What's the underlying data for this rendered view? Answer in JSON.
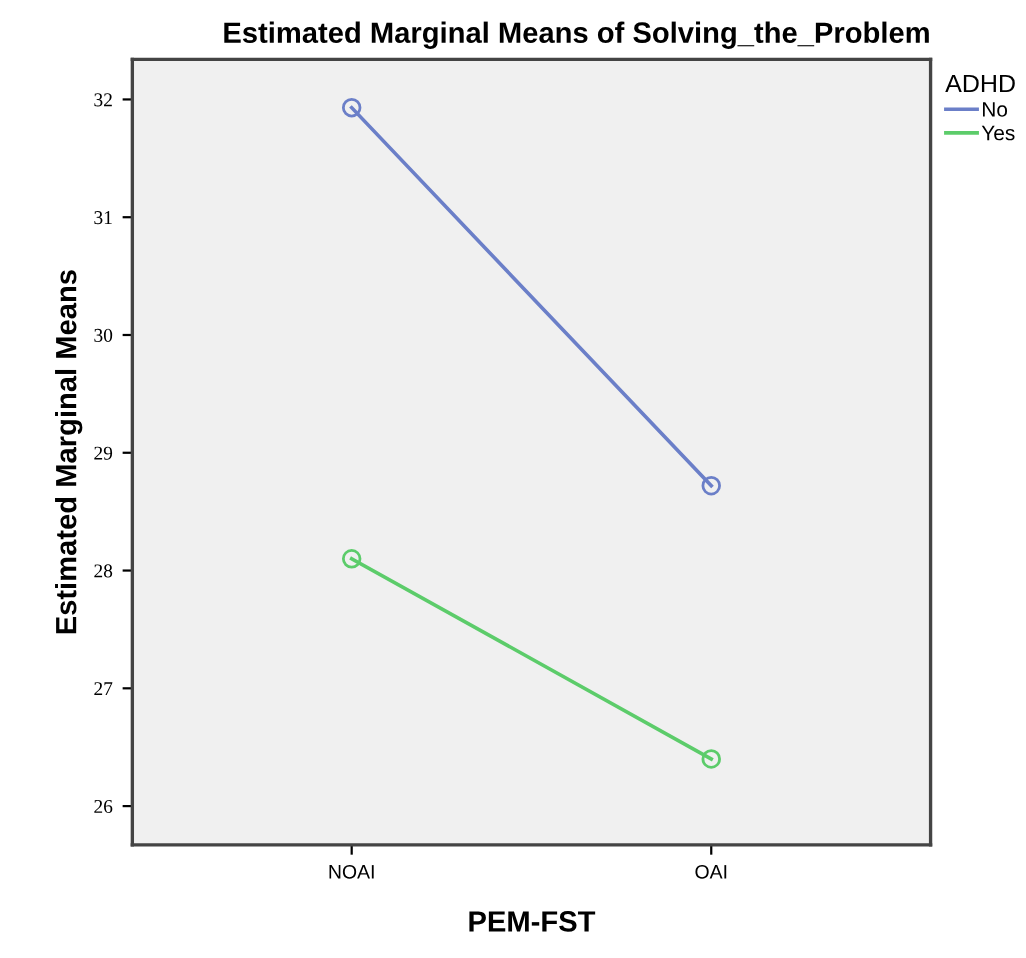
{
  "chart_data": {
    "type": "line",
    "title": "Estimated Marginal Means of Solving_the_Problem",
    "xlabel": "PEM-FST",
    "ylabel": "Estimated Marginal Means",
    "legend_title": "ADHD",
    "categories": [
      "NOAI",
      "OAI"
    ],
    "series": [
      {
        "name": "No",
        "color": "#6b7fc8",
        "values": [
          31.93,
          28.72
        ]
      },
      {
        "name": "Yes",
        "color": "#5ccc6a",
        "values": [
          28.1,
          26.4
        ]
      }
    ],
    "ylim": [
      25.67,
      32.34
    ],
    "yticks": [
      26,
      27,
      28,
      29,
      30,
      31,
      32
    ],
    "grid": false,
    "legend": "top right",
    "marker": "circle",
    "line_style": "solid"
  }
}
